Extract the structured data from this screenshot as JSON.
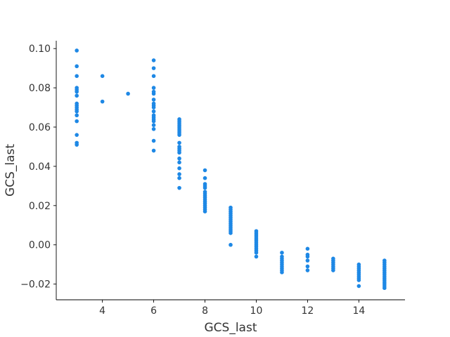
{
  "chart_data": {
    "type": "scatter",
    "title": "",
    "xlabel": "GCS_last",
    "ylabel": "GCS_last",
    "xlim": [
      2.2,
      15.8
    ],
    "ylim": [
      -0.028,
      0.104
    ],
    "xticks": [
      4,
      6,
      8,
      10,
      12,
      14
    ],
    "xtick_labels": [
      "4",
      "6",
      "8",
      "10",
      "12",
      "14"
    ],
    "yticks": [
      -0.02,
      0.0,
      0.02,
      0.04,
      0.06,
      0.08,
      0.1
    ],
    "ytick_labels": [
      "−0.02",
      "0.00",
      "0.02",
      "0.04",
      "0.06",
      "0.08",
      "0.10"
    ],
    "grid": false,
    "point_color": "#1e88e5",
    "points_by_x": [
      {
        "x": 3,
        "y": [
          0.099,
          0.091,
          0.086,
          0.08,
          0.079,
          0.078,
          0.076,
          0.072,
          0.071,
          0.07,
          0.069,
          0.068,
          0.066,
          0.063,
          0.056,
          0.052,
          0.051
        ]
      },
      {
        "x": 4,
        "y": [
          0.086,
          0.073
        ]
      },
      {
        "x": 5,
        "y": [
          0.077
        ]
      },
      {
        "x": 6,
        "y": [
          0.094,
          0.09,
          0.086,
          0.08,
          0.078,
          0.077,
          0.074,
          0.072,
          0.071,
          0.07,
          0.068,
          0.066,
          0.065,
          0.064,
          0.063,
          0.061,
          0.059,
          0.053,
          0.048
        ]
      },
      {
        "x": 7,
        "y": [
          0.064,
          0.063,
          0.062,
          0.061,
          0.06,
          0.059,
          0.058,
          0.057,
          0.056,
          0.052,
          0.05,
          0.049,
          0.048,
          0.047,
          0.044,
          0.042,
          0.039,
          0.036,
          0.034,
          0.029
        ]
      },
      {
        "x": 8,
        "y": [
          0.038,
          0.034,
          0.031,
          0.03,
          0.029,
          0.027,
          0.026,
          0.025,
          0.024,
          0.023,
          0.022,
          0.021,
          0.02,
          0.019,
          0.018,
          0.017
        ]
      },
      {
        "x": 9,
        "y": [
          0.019,
          0.018,
          0.017,
          0.016,
          0.015,
          0.014,
          0.013,
          0.012,
          0.011,
          0.01,
          0.009,
          0.008,
          0.007,
          0.006,
          0.0
        ]
      },
      {
        "x": 10,
        "y": [
          0.007,
          0.006,
          0.005,
          0.004,
          0.003,
          0.002,
          0.001,
          0.0,
          -0.001,
          -0.002,
          -0.003,
          -0.004,
          -0.006
        ]
      },
      {
        "x": 11,
        "y": [
          -0.004,
          -0.006,
          -0.007,
          -0.008,
          -0.009,
          -0.01,
          -0.011,
          -0.012,
          -0.013,
          -0.014
        ]
      },
      {
        "x": 12,
        "y": [
          -0.002,
          -0.005,
          -0.006,
          -0.008,
          -0.011,
          -0.013
        ]
      },
      {
        "x": 13,
        "y": [
          -0.007,
          -0.008,
          -0.009,
          -0.01,
          -0.011,
          -0.012,
          -0.013
        ]
      },
      {
        "x": 14,
        "y": [
          -0.01,
          -0.011,
          -0.012,
          -0.013,
          -0.014,
          -0.015,
          -0.016,
          -0.017,
          -0.018,
          -0.021
        ]
      },
      {
        "x": 15,
        "y": [
          -0.008,
          -0.009,
          -0.01,
          -0.011,
          -0.012,
          -0.013,
          -0.014,
          -0.015,
          -0.016,
          -0.017,
          -0.018,
          -0.019,
          -0.02,
          -0.021,
          -0.022
        ]
      }
    ]
  }
}
